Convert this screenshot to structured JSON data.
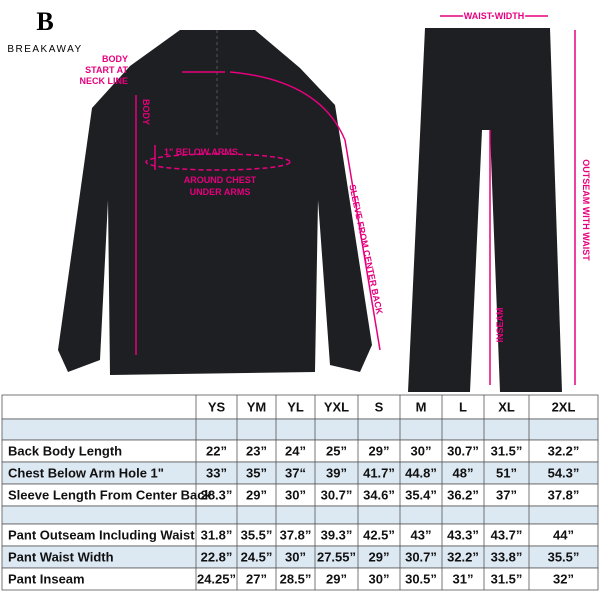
{
  "logo": "BREAKAWAY",
  "annotations": {
    "body_start": [
      "BODY",
      "START AT",
      "NECK LINE"
    ],
    "body": "BODY",
    "below_arms": "1\" BELOW ARMS",
    "around_chest": [
      "AROUND CHEST",
      "UNDER ARMS"
    ],
    "sleeve": "SLEEVE FROM CENTER BACK",
    "waist_width": "WAIST WIDTH",
    "inseam": "INSEAM",
    "outseam": "OUTSEAM WITH WAIST"
  },
  "table": {
    "headers": [
      "YS",
      "YM",
      "YL",
      "YXL",
      "S",
      "M",
      "L",
      "XL",
      "2XL"
    ],
    "rows": [
      {
        "label": "Back Body Length",
        "values": [
          "22”",
          "23”",
          "24”",
          "25”",
          "29”",
          "30”",
          "30.7”",
          "31.5”",
          "32.2”"
        ]
      },
      {
        "label": "Chest Below Arm Hole 1\"",
        "values": [
          "33”",
          "35”",
          "37“",
          "39”",
          "41.7”",
          "44.8”",
          "48”",
          "51”",
          "54.3”"
        ]
      },
      {
        "label": "Sleeve Length From Center Back",
        "values": [
          "28.3”",
          "29”",
          "30”",
          "30.7”",
          "34.6”",
          "35.4”",
          "36.2”",
          "37”",
          "37.8”"
        ]
      },
      {
        "label": "Pant Outseam Including Waist",
        "values": [
          "31.8”",
          "35.5”",
          "37.8”",
          "39.3”",
          "42.5”",
          "43”",
          "43.3”",
          "43.7”",
          "44”"
        ]
      },
      {
        "label": "Pant Waist Width",
        "values": [
          "22.8”",
          "24.5”",
          "30”",
          "27.55”",
          "29”",
          "30.7”",
          "32.2”",
          "33.8”",
          "35.5”"
        ]
      },
      {
        "label": "Pant Inseam",
        "values": [
          "24.25”",
          "27”",
          "28.5”",
          "29”",
          "30”",
          "30.5”",
          "31”",
          "31.5”",
          "32”"
        ]
      }
    ]
  }
}
